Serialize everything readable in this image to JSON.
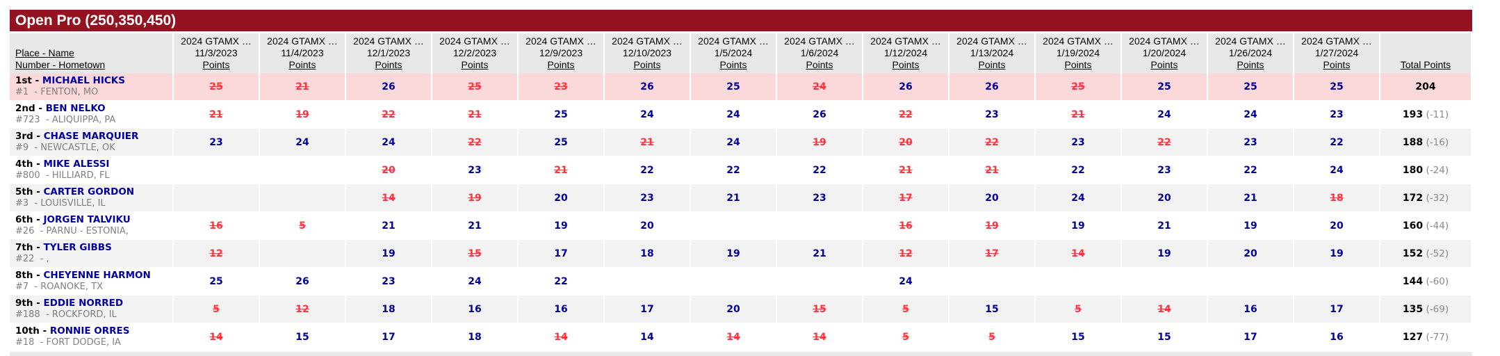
{
  "header": {
    "title": "Open Pro (250,350,450)"
  },
  "colors": {
    "title_bar_bg": "#941321",
    "title_text": "#ffffff",
    "column_header_bg": "#e8e8e8",
    "highlight_row_bg": "#fbd9da",
    "alt_row_bg": "#f2f2f2",
    "points_blue": "#00009c",
    "struck_red": "#f93540",
    "name_blue": "#0000a0",
    "muted_gray": "#808080",
    "deficit_gray": "#8a8a8a"
  },
  "table": {
    "row_header": {
      "line1": "Place - Name",
      "line2": "Number - Hometown"
    },
    "total_header": "Total Points",
    "points_label": "Points",
    "event_series_label": "2024 GTAMX …",
    "event_dates": [
      "11/3/2023",
      "11/4/2023",
      "12/1/2023",
      "12/2/2023",
      "12/9/2023",
      "12/10/2023",
      "1/5/2024",
      "1/6/2024",
      "1/12/2024",
      "1/13/2024",
      "1/19/2024",
      "1/20/2024",
      "1/26/2024",
      "1/27/2024"
    ],
    "rows": [
      {
        "place": "1st",
        "name": "MICHAEL HICKS",
        "number": "#1",
        "hometown": "FENTON, MO",
        "highlight": true,
        "points": [
          {
            "v": 25,
            "struck": true
          },
          {
            "v": 21,
            "struck": true
          },
          {
            "v": 26,
            "struck": false
          },
          {
            "v": 25,
            "struck": true
          },
          {
            "v": 23,
            "struck": true
          },
          {
            "v": 26,
            "struck": false
          },
          {
            "v": 25,
            "struck": false
          },
          {
            "v": 24,
            "struck": true
          },
          {
            "v": 26,
            "struck": false
          },
          {
            "v": 26,
            "struck": false
          },
          {
            "v": 25,
            "struck": true
          },
          {
            "v": 25,
            "struck": false
          },
          {
            "v": 25,
            "struck": false
          },
          {
            "v": 25,
            "struck": false
          }
        ],
        "total": "204",
        "deficit": ""
      },
      {
        "place": "2nd",
        "name": "BEN NELKO",
        "number": "#723",
        "hometown": "ALIQUIPPA, PA",
        "highlight": false,
        "points": [
          {
            "v": 21,
            "struck": true
          },
          {
            "v": 19,
            "struck": true
          },
          {
            "v": 22,
            "struck": true
          },
          {
            "v": 21,
            "struck": true
          },
          {
            "v": 25,
            "struck": false
          },
          {
            "v": 24,
            "struck": false
          },
          {
            "v": 24,
            "struck": false
          },
          {
            "v": 26,
            "struck": false
          },
          {
            "v": 22,
            "struck": true
          },
          {
            "v": 23,
            "struck": false
          },
          {
            "v": 21,
            "struck": true
          },
          {
            "v": 24,
            "struck": false
          },
          {
            "v": 24,
            "struck": false
          },
          {
            "v": 23,
            "struck": false
          }
        ],
        "total": "193",
        "deficit": "(-11)"
      },
      {
        "place": "3rd",
        "name": "CHASE MARQUIER",
        "number": "#9",
        "hometown": "NEWCASTLE, OK",
        "highlight": false,
        "points": [
          {
            "v": 23,
            "struck": false
          },
          {
            "v": 24,
            "struck": false
          },
          {
            "v": 24,
            "struck": false
          },
          {
            "v": 22,
            "struck": true
          },
          {
            "v": 25,
            "struck": false
          },
          {
            "v": 21,
            "struck": true
          },
          {
            "v": 24,
            "struck": false
          },
          {
            "v": 19,
            "struck": true
          },
          {
            "v": 20,
            "struck": true
          },
          {
            "v": 22,
            "struck": true
          },
          {
            "v": 23,
            "struck": false
          },
          {
            "v": 22,
            "struck": true
          },
          {
            "v": 23,
            "struck": false
          },
          {
            "v": 22,
            "struck": false
          }
        ],
        "total": "188",
        "deficit": "(-16)"
      },
      {
        "place": "4th",
        "name": "MIKE ALESSI",
        "number": "#800",
        "hometown": "HILLIARD, FL",
        "highlight": false,
        "points": [
          null,
          null,
          {
            "v": 20,
            "struck": true
          },
          {
            "v": 23,
            "struck": false
          },
          {
            "v": 21,
            "struck": true
          },
          {
            "v": 22,
            "struck": false
          },
          {
            "v": 22,
            "struck": false
          },
          {
            "v": 22,
            "struck": false
          },
          {
            "v": 21,
            "struck": true
          },
          {
            "v": 21,
            "struck": true
          },
          {
            "v": 22,
            "struck": false
          },
          {
            "v": 23,
            "struck": false
          },
          {
            "v": 22,
            "struck": false
          },
          {
            "v": 24,
            "struck": false
          }
        ],
        "total": "180",
        "deficit": "(-24)"
      },
      {
        "place": "5th",
        "name": "CARTER GORDON",
        "number": "#3",
        "hometown": "LOUISVILLE, IL",
        "highlight": false,
        "points": [
          null,
          null,
          {
            "v": 14,
            "struck": true
          },
          {
            "v": 19,
            "struck": true
          },
          {
            "v": 20,
            "struck": false
          },
          {
            "v": 23,
            "struck": false
          },
          {
            "v": 21,
            "struck": false
          },
          {
            "v": 23,
            "struck": false
          },
          {
            "v": 17,
            "struck": true
          },
          {
            "v": 20,
            "struck": false
          },
          {
            "v": 24,
            "struck": false
          },
          {
            "v": 20,
            "struck": false
          },
          {
            "v": 21,
            "struck": false
          },
          {
            "v": 18,
            "struck": true
          }
        ],
        "total": "172",
        "deficit": "(-32)"
      },
      {
        "place": "6th",
        "name": "JORGEN TALVIKU",
        "number": "#26",
        "hometown": "PARNU - ESTONIA,",
        "highlight": false,
        "points": [
          {
            "v": 16,
            "struck": true
          },
          {
            "v": 5,
            "struck": true
          },
          {
            "v": 21,
            "struck": false
          },
          {
            "v": 21,
            "struck": false
          },
          {
            "v": 19,
            "struck": false
          },
          {
            "v": 20,
            "struck": false
          },
          null,
          null,
          {
            "v": 16,
            "struck": true
          },
          {
            "v": 19,
            "struck": true
          },
          {
            "v": 19,
            "struck": false
          },
          {
            "v": 21,
            "struck": false
          },
          {
            "v": 19,
            "struck": false
          },
          {
            "v": 20,
            "struck": false
          }
        ],
        "total": "160",
        "deficit": "(-44)"
      },
      {
        "place": "7th",
        "name": "TYLER GIBBS",
        "number": "#22",
        "hometown": ",",
        "highlight": false,
        "points": [
          {
            "v": 12,
            "struck": true
          },
          null,
          {
            "v": 19,
            "struck": false
          },
          {
            "v": 15,
            "struck": true
          },
          {
            "v": 17,
            "struck": false
          },
          {
            "v": 18,
            "struck": false
          },
          {
            "v": 19,
            "struck": false
          },
          {
            "v": 21,
            "struck": false
          },
          {
            "v": 12,
            "struck": true
          },
          {
            "v": 17,
            "struck": true
          },
          {
            "v": 14,
            "struck": true
          },
          {
            "v": 19,
            "struck": false
          },
          {
            "v": 20,
            "struck": false
          },
          {
            "v": 19,
            "struck": false
          }
        ],
        "total": "152",
        "deficit": "(-52)"
      },
      {
        "place": "8th",
        "name": "CHEYENNE HARMON",
        "number": "#7",
        "hometown": "ROANOKE, TX",
        "highlight": false,
        "points": [
          {
            "v": 25,
            "struck": false
          },
          {
            "v": 26,
            "struck": false
          },
          {
            "v": 23,
            "struck": false
          },
          {
            "v": 24,
            "struck": false
          },
          {
            "v": 22,
            "struck": false
          },
          null,
          null,
          null,
          {
            "v": 24,
            "struck": false
          },
          null,
          null,
          null,
          null,
          null
        ],
        "total": "144",
        "deficit": "(-60)"
      },
      {
        "place": "9th",
        "name": "EDDIE NORRED",
        "number": "#188",
        "hometown": "ROCKFORD, IL",
        "highlight": false,
        "points": [
          {
            "v": 5,
            "struck": true
          },
          {
            "v": 12,
            "struck": true
          },
          {
            "v": 18,
            "struck": false
          },
          {
            "v": 16,
            "struck": false
          },
          {
            "v": 16,
            "struck": false
          },
          {
            "v": 17,
            "struck": false
          },
          {
            "v": 20,
            "struck": false
          },
          {
            "v": 15,
            "struck": true
          },
          {
            "v": 5,
            "struck": true
          },
          {
            "v": 15,
            "struck": false
          },
          {
            "v": 5,
            "struck": true
          },
          {
            "v": 14,
            "struck": true
          },
          {
            "v": 16,
            "struck": false
          },
          {
            "v": 17,
            "struck": false
          }
        ],
        "total": "135",
        "deficit": "(-69)"
      },
      {
        "place": "10th",
        "name": "RONNIE ORRES",
        "number": "#18",
        "hometown": "FORT DODGE, IA",
        "highlight": false,
        "points": [
          {
            "v": 14,
            "struck": true
          },
          {
            "v": 15,
            "struck": false
          },
          {
            "v": 17,
            "struck": false
          },
          {
            "v": 18,
            "struck": false
          },
          {
            "v": 14,
            "struck": true
          },
          {
            "v": 14,
            "struck": false
          },
          {
            "v": 14,
            "struck": true
          },
          {
            "v": 14,
            "struck": true
          },
          {
            "v": 5,
            "struck": true
          },
          {
            "v": 5,
            "struck": true
          },
          {
            "v": 15,
            "struck": false
          },
          {
            "v": 15,
            "struck": false
          },
          {
            "v": 17,
            "struck": false
          },
          {
            "v": 16,
            "struck": false
          }
        ],
        "total": "127",
        "deficit": "(-77)"
      }
    ]
  }
}
